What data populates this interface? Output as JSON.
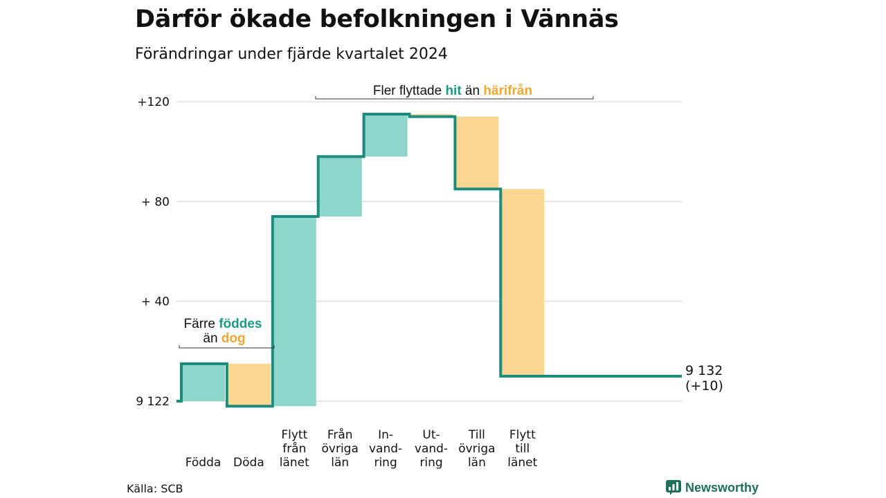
{
  "title": "Därför ökade befolkningen i Vännäs",
  "subtitle": "Förändringar under fjärde kvartalet 2024",
  "source": "Källa: SCB",
  "brand": "Newsworthy",
  "colors": {
    "increase": "#8ed6cb",
    "decrease": "#fad690",
    "line": "#1b8c7c",
    "grid": "#dddddd",
    "teal_text": "#1a9985",
    "orange_text": "#f2a531"
  },
  "chart_data": {
    "type": "waterfall",
    "base_value": "9 122",
    "y_tick_labels": [
      "+120",
      "+ 80",
      "+ 40",
      "9 122"
    ],
    "y_ticks": [
      120,
      80,
      40,
      0
    ],
    "ylim": [
      -3,
      125
    ],
    "categories": [
      {
        "label": "Födda",
        "lines": [
          "Födda"
        ],
        "change": 15
      },
      {
        "label": "Döda",
        "lines": [
          "Döda"
        ],
        "change": -17
      },
      {
        "label": "Flytt från länet",
        "lines": [
          "Flytt",
          "från",
          "länet"
        ],
        "change": 76
      },
      {
        "label": "Från övriga län",
        "lines": [
          "Från",
          "övriga",
          "län"
        ],
        "change": 24
      },
      {
        "label": "In-vandring",
        "lines": [
          "In-",
          "vand-",
          "ring"
        ],
        "change": 17
      },
      {
        "label": "Ut-vandring",
        "lines": [
          "Ut-",
          "vand-",
          "ring"
        ],
        "change": -1
      },
      {
        "label": "Till övriga län",
        "lines": [
          "Till",
          "övriga",
          "län"
        ],
        "change": -29
      },
      {
        "label": "Flytt till länet",
        "lines": [
          "Flytt",
          "till",
          "länet"
        ],
        "change": -75
      }
    ],
    "end_label": [
      "9 132",
      "(+10)"
    ],
    "annotations": [
      {
        "parts": [
          {
            "text": "Färre ",
            "style": "plain"
          },
          {
            "text": "föddes",
            "style": "teal"
          }
        ],
        "line2": [
          {
            "text": "än ",
            "style": "plain"
          },
          {
            "text": "dog",
            "style": "orange"
          }
        ]
      },
      {
        "parts": [
          {
            "text": "Fler flyttade ",
            "style": "plain"
          },
          {
            "text": "hit",
            "style": "teal"
          },
          {
            "text": " än ",
            "style": "plain"
          },
          {
            "text": "härifrån",
            "style": "orange"
          }
        ]
      }
    ]
  }
}
